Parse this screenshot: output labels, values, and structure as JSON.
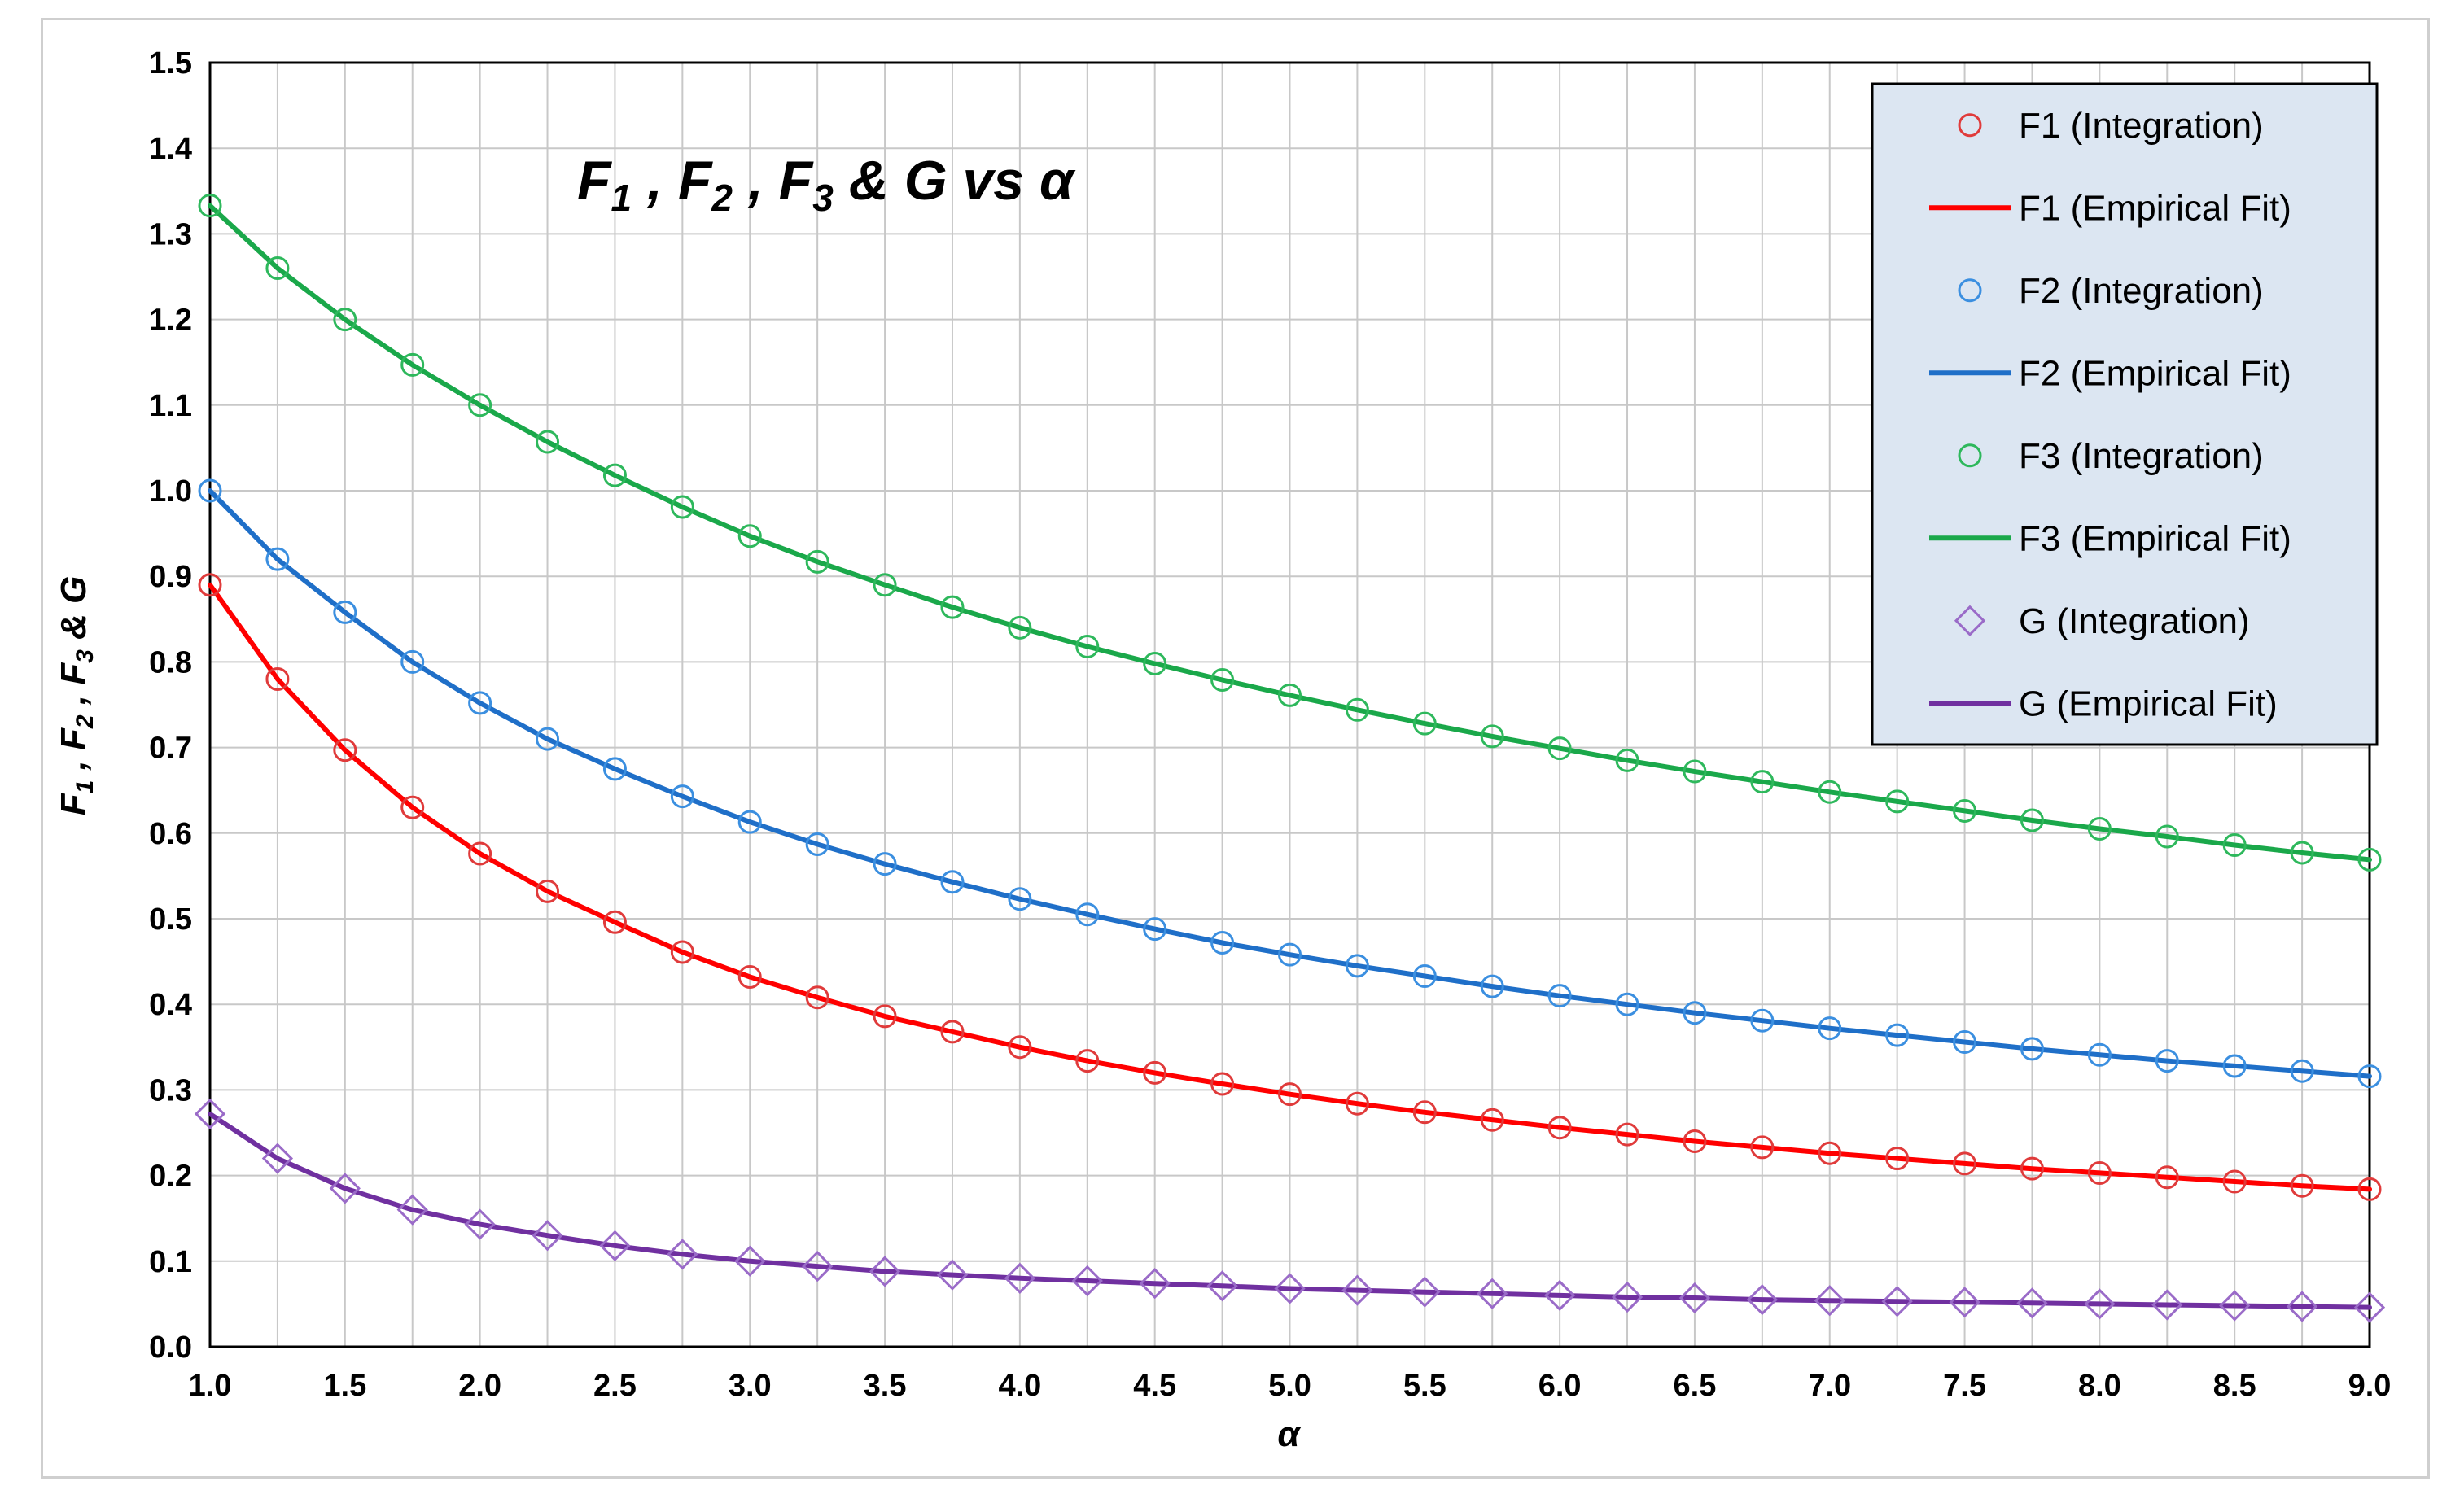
{
  "chart_data": {
    "type": "line",
    "title": {
      "main_1": "F",
      "sub_1": "1",
      "sep_1": " , ",
      "main_2": "F",
      "sub_2": "2",
      "sep_2": " , ",
      "main_3": "F",
      "sub_3": "3",
      "rest": " & G vs  α"
    },
    "xlabel": "α",
    "ylabel": {
      "main_1": "F",
      "sub_1": "1",
      "sep_1": " , ",
      "main_2": "F",
      "sub_2": "2",
      "sep_2": " , ",
      "main_3": "F",
      "sub_3": "3",
      "rest": " & G"
    },
    "xlim": [
      1.0,
      9.0
    ],
    "ylim": [
      0.0,
      1.5
    ],
    "x_ticks": [
      "1.0",
      "1.5",
      "2.0",
      "2.5",
      "3.0",
      "3.5",
      "4.0",
      "4.5",
      "5.0",
      "5.5",
      "6.0",
      "6.5",
      "7.0",
      "7.5",
      "8.0",
      "8.5",
      "9.0"
    ],
    "y_ticks": [
      "0.0",
      "0.1",
      "0.2",
      "0.3",
      "0.4",
      "0.5",
      "0.6",
      "0.7",
      "0.8",
      "0.9",
      "1.0",
      "1.1",
      "1.2",
      "1.3",
      "1.4",
      "1.5"
    ],
    "grid": true,
    "legend_position": "top-right",
    "x": [
      1.0,
      1.25,
      1.5,
      1.75,
      2.0,
      2.25,
      2.5,
      2.75,
      3.0,
      3.25,
      3.5,
      3.75,
      4.0,
      4.25,
      4.5,
      4.75,
      5.0,
      5.25,
      5.5,
      5.75,
      6.0,
      6.25,
      6.5,
      6.75,
      7.0,
      7.25,
      7.5,
      7.75,
      8.0,
      8.25,
      8.5,
      8.75,
      9.0
    ],
    "series": [
      {
        "name": "F1 (Integration)",
        "kind": "markers",
        "marker": "circle",
        "color": "#e03b3b",
        "values": [
          0.89,
          0.78,
          0.697,
          0.63,
          0.576,
          0.532,
          0.496,
          0.461,
          0.432,
          0.408,
          0.386,
          0.368,
          0.35,
          0.334,
          0.32,
          0.307,
          0.295,
          0.284,
          0.274,
          0.265,
          0.256,
          0.248,
          0.24,
          0.233,
          0.226,
          0.22,
          0.214,
          0.208,
          0.203,
          0.198,
          0.193,
          0.188,
          0.184
        ]
      },
      {
        "name": "F1 (Empirical Fit)",
        "kind": "line",
        "color": "#ff0000",
        "values": [
          0.89,
          0.78,
          0.697,
          0.63,
          0.576,
          0.532,
          0.496,
          0.461,
          0.432,
          0.408,
          0.386,
          0.368,
          0.35,
          0.334,
          0.32,
          0.307,
          0.295,
          0.284,
          0.274,
          0.265,
          0.256,
          0.248,
          0.24,
          0.233,
          0.226,
          0.22,
          0.214,
          0.208,
          0.203,
          0.198,
          0.193,
          0.188,
          0.184
        ]
      },
      {
        "name": "F2 (Integration)",
        "kind": "markers",
        "marker": "circle",
        "color": "#3b8fe0",
        "values": [
          1.0,
          0.92,
          0.858,
          0.8,
          0.752,
          0.71,
          0.675,
          0.643,
          0.613,
          0.587,
          0.564,
          0.543,
          0.523,
          0.505,
          0.488,
          0.472,
          0.458,
          0.445,
          0.433,
          0.421,
          0.41,
          0.4,
          0.39,
          0.381,
          0.372,
          0.364,
          0.356,
          0.348,
          0.341,
          0.334,
          0.328,
          0.322,
          0.316
        ]
      },
      {
        "name": "F2 (Empirical Fit)",
        "kind": "line",
        "color": "#1f6fc8",
        "values": [
          1.0,
          0.92,
          0.858,
          0.8,
          0.752,
          0.71,
          0.675,
          0.643,
          0.613,
          0.587,
          0.564,
          0.543,
          0.523,
          0.505,
          0.488,
          0.472,
          0.458,
          0.445,
          0.433,
          0.421,
          0.41,
          0.4,
          0.39,
          0.381,
          0.372,
          0.364,
          0.356,
          0.348,
          0.341,
          0.334,
          0.328,
          0.322,
          0.316
        ]
      },
      {
        "name": "F3 (Integration)",
        "kind": "markers",
        "marker": "circle",
        "color": "#2eb85c",
        "values": [
          1.333,
          1.26,
          1.2,
          1.147,
          1.1,
          1.057,
          1.018,
          0.981,
          0.947,
          0.917,
          0.89,
          0.864,
          0.84,
          0.818,
          0.798,
          0.779,
          0.761,
          0.744,
          0.728,
          0.713,
          0.699,
          0.685,
          0.672,
          0.66,
          0.648,
          0.637,
          0.626,
          0.615,
          0.605,
          0.596,
          0.586,
          0.577,
          0.569
        ]
      },
      {
        "name": "F3 (Empirical Fit)",
        "kind": "line",
        "color": "#1aa84a",
        "values": [
          1.333,
          1.26,
          1.2,
          1.147,
          1.1,
          1.057,
          1.018,
          0.981,
          0.947,
          0.917,
          0.89,
          0.864,
          0.84,
          0.818,
          0.798,
          0.779,
          0.761,
          0.744,
          0.728,
          0.713,
          0.699,
          0.685,
          0.672,
          0.66,
          0.648,
          0.637,
          0.626,
          0.615,
          0.605,
          0.596,
          0.586,
          0.577,
          0.569
        ]
      },
      {
        "name": "G (Integration)",
        "kind": "markers",
        "marker": "diamond",
        "color": "#9a6bc8",
        "values": [
          0.272,
          0.22,
          0.185,
          0.16,
          0.143,
          0.13,
          0.118,
          0.108,
          0.1,
          0.094,
          0.088,
          0.084,
          0.08,
          0.077,
          0.074,
          0.071,
          0.068,
          0.066,
          0.064,
          0.062,
          0.06,
          0.058,
          0.057,
          0.055,
          0.054,
          0.053,
          0.052,
          0.051,
          0.05,
          0.049,
          0.048,
          0.047,
          0.046
        ]
      },
      {
        "name": "G (Empirical Fit)",
        "kind": "line",
        "color": "#7030a0",
        "values": [
          0.272,
          0.22,
          0.185,
          0.16,
          0.143,
          0.13,
          0.118,
          0.108,
          0.1,
          0.094,
          0.088,
          0.084,
          0.08,
          0.077,
          0.074,
          0.071,
          0.068,
          0.066,
          0.064,
          0.062,
          0.06,
          0.058,
          0.057,
          0.055,
          0.054,
          0.053,
          0.052,
          0.051,
          0.05,
          0.049,
          0.048,
          0.047,
          0.046
        ]
      }
    ],
    "colors": {
      "plot_border": "#000000",
      "grid": "#c8c8c8",
      "legend_background": "#dce6f2",
      "legend_border": "#000000"
    }
  }
}
